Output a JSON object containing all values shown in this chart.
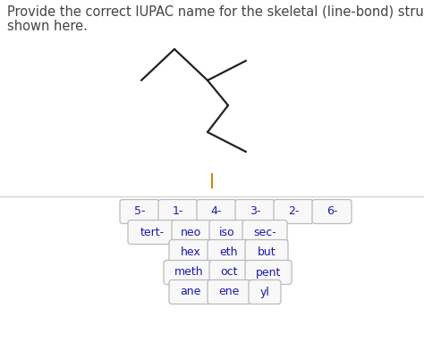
{
  "title_text": "Provide the correct IUPAC name for the skeletal (line-bond) structure\nshown here.",
  "title_fontsize": 10.5,
  "title_color": "#444444",
  "background_top": "#ffffff",
  "background_bottom": "#e5e5e5",
  "molecule_color": "#222222",
  "molecule_linewidth": 1.6,
  "separator_color": "#cc8800",
  "row1_buttons": [
    "5-",
    "1-",
    "4-",
    "3-",
    "2-",
    "6-"
  ],
  "row2_buttons": [
    "tert-",
    "neo",
    "iso",
    "sec-"
  ],
  "row3_buttons": [
    "hex",
    "eth",
    "but"
  ],
  "row4_buttons": [
    "meth",
    "oct",
    "pent"
  ],
  "row5_buttons": [
    "ane",
    "ene",
    "yl"
  ],
  "button_text_color": "#1a1aaa",
  "button_face_color": "#f8f8f8",
  "button_edge_color": "#bbbbbb",
  "button_fontsize": 9.5
}
